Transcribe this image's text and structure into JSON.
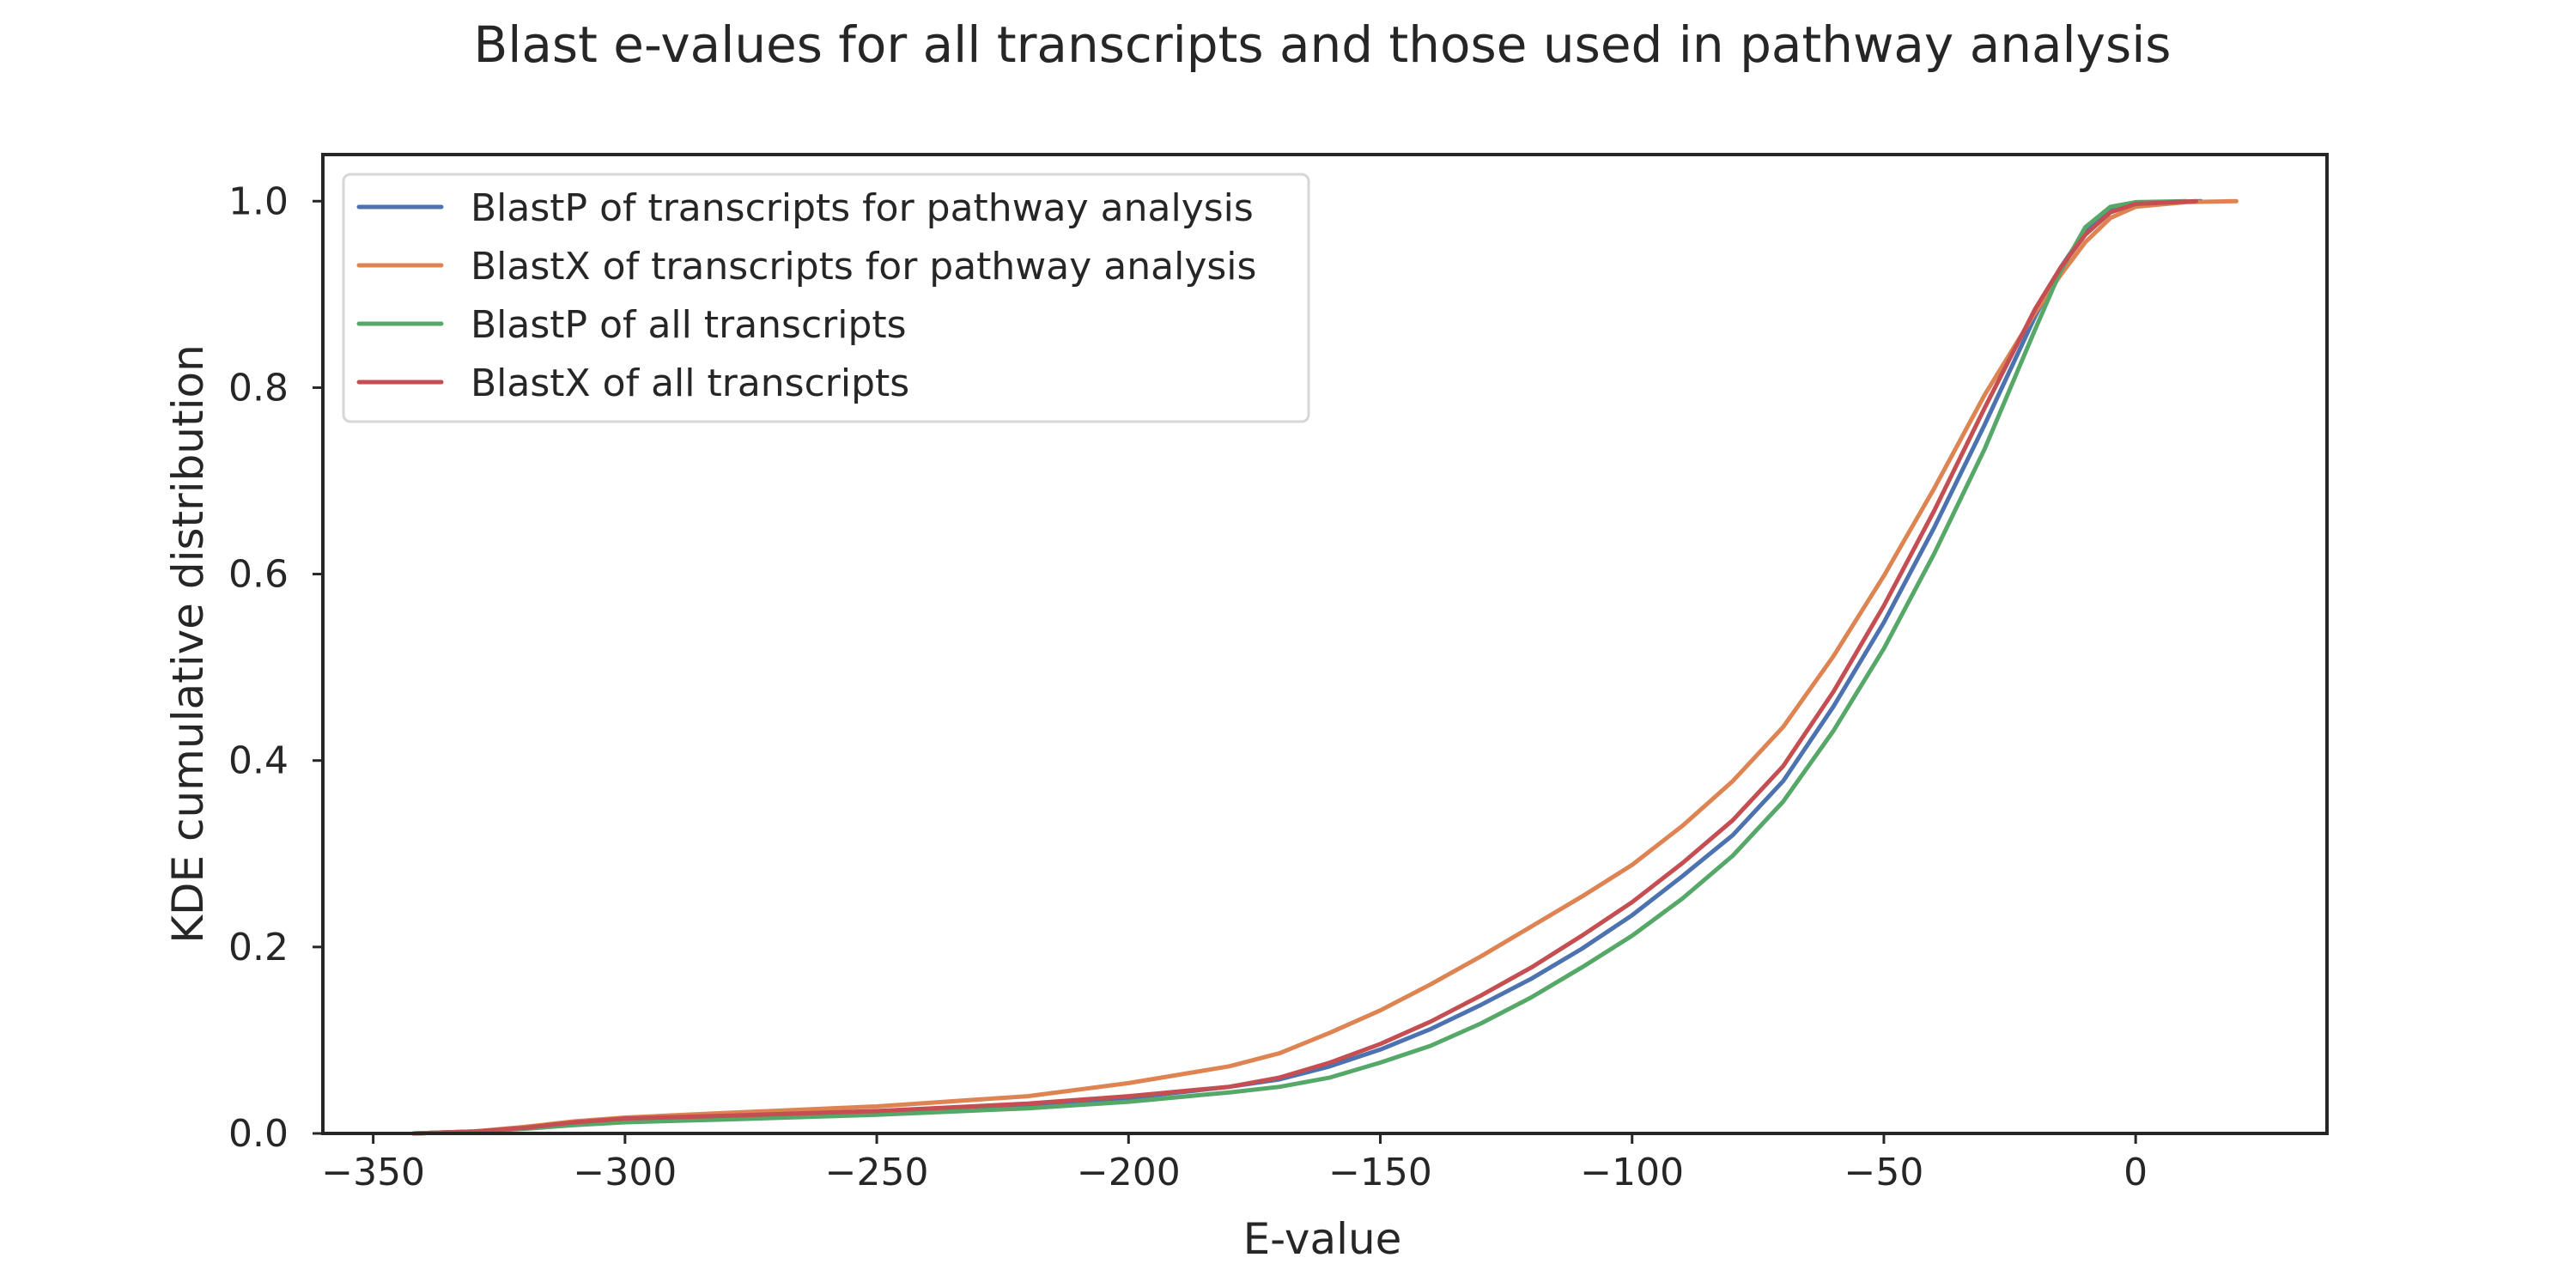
{
  "chart_data": {
    "type": "line",
    "title": "Blast e-values for all transcripts and those used in pathway analysis",
    "xlabel": "E-value",
    "ylabel": "KDE cumulative distribution",
    "xlim": [
      -360,
      38
    ],
    "ylim": [
      0.0,
      1.05
    ],
    "xticks": [
      -350,
      -300,
      -250,
      -200,
      -150,
      -100,
      -50,
      0
    ],
    "xtick_labels": [
      "−350",
      "−300",
      "−250",
      "−200",
      "−150",
      "−100",
      "−50",
      "0"
    ],
    "yticks": [
      0.0,
      0.2,
      0.4,
      0.6,
      0.8,
      1.0
    ],
    "ytick_labels": [
      "0.0",
      "0.2",
      "0.4",
      "0.6",
      "0.8",
      "1.0"
    ],
    "grid": false,
    "legend_position": "upper-left",
    "series": [
      {
        "name": "BlastP of transcripts for pathway analysis",
        "color": "#4c72b0",
        "points": [
          [
            -342,
            0.0
          ],
          [
            -330,
            0.002
          ],
          [
            -320,
            0.006
          ],
          [
            -310,
            0.011
          ],
          [
            -300,
            0.014
          ],
          [
            -280,
            0.017
          ],
          [
            -250,
            0.022
          ],
          [
            -220,
            0.03
          ],
          [
            -200,
            0.038
          ],
          [
            -180,
            0.05
          ],
          [
            -170,
            0.058
          ],
          [
            -160,
            0.072
          ],
          [
            -150,
            0.09
          ],
          [
            -140,
            0.112
          ],
          [
            -130,
            0.138
          ],
          [
            -120,
            0.166
          ],
          [
            -110,
            0.198
          ],
          [
            -100,
            0.234
          ],
          [
            -90,
            0.276
          ],
          [
            -80,
            0.32
          ],
          [
            -70,
            0.378
          ],
          [
            -60,
            0.458
          ],
          [
            -50,
            0.548
          ],
          [
            -40,
            0.65
          ],
          [
            -30,
            0.76
          ],
          [
            -20,
            0.876
          ],
          [
            -15,
            0.928
          ],
          [
            -10,
            0.968
          ],
          [
            -5,
            0.99
          ],
          [
            0,
            0.998
          ],
          [
            13,
            1.0
          ]
        ]
      },
      {
        "name": "BlastX of transcripts for pathway analysis",
        "color": "#dd8452",
        "points": [
          [
            -342,
            0.0
          ],
          [
            -330,
            0.002
          ],
          [
            -320,
            0.007
          ],
          [
            -310,
            0.013
          ],
          [
            -300,
            0.017
          ],
          [
            -280,
            0.022
          ],
          [
            -250,
            0.029
          ],
          [
            -220,
            0.04
          ],
          [
            -200,
            0.054
          ],
          [
            -180,
            0.072
          ],
          [
            -170,
            0.086
          ],
          [
            -160,
            0.108
          ],
          [
            -150,
            0.132
          ],
          [
            -140,
            0.16
          ],
          [
            -130,
            0.19
          ],
          [
            -120,
            0.222
          ],
          [
            -110,
            0.254
          ],
          [
            -100,
            0.288
          ],
          [
            -90,
            0.33
          ],
          [
            -80,
            0.378
          ],
          [
            -70,
            0.436
          ],
          [
            -60,
            0.512
          ],
          [
            -50,
            0.598
          ],
          [
            -40,
            0.692
          ],
          [
            -30,
            0.792
          ],
          [
            -20,
            0.88
          ],
          [
            -15,
            0.92
          ],
          [
            -10,
            0.956
          ],
          [
            -5,
            0.982
          ],
          [
            0,
            0.994
          ],
          [
            10,
            0.999
          ],
          [
            20,
            1.0
          ]
        ]
      },
      {
        "name": "BlastP of all transcripts",
        "color": "#55a868",
        "points": [
          [
            -342,
            0.0
          ],
          [
            -330,
            0.002
          ],
          [
            -320,
            0.005
          ],
          [
            -310,
            0.009
          ],
          [
            -300,
            0.012
          ],
          [
            -280,
            0.015
          ],
          [
            -250,
            0.02
          ],
          [
            -220,
            0.027
          ],
          [
            -200,
            0.034
          ],
          [
            -180,
            0.044
          ],
          [
            -170,
            0.05
          ],
          [
            -160,
            0.06
          ],
          [
            -150,
            0.076
          ],
          [
            -140,
            0.094
          ],
          [
            -130,
            0.118
          ],
          [
            -120,
            0.146
          ],
          [
            -110,
            0.178
          ],
          [
            -100,
            0.212
          ],
          [
            -90,
            0.252
          ],
          [
            -80,
            0.298
          ],
          [
            -70,
            0.356
          ],
          [
            -60,
            0.432
          ],
          [
            -50,
            0.52
          ],
          [
            -40,
            0.622
          ],
          [
            -30,
            0.734
          ],
          [
            -20,
            0.862
          ],
          [
            -15,
            0.924
          ],
          [
            -10,
            0.972
          ],
          [
            -5,
            0.994
          ],
          [
            0,
            0.999
          ],
          [
            10,
            1.0
          ]
        ]
      },
      {
        "name": "BlastX of all transcripts",
        "color": "#c44e52",
        "points": [
          [
            -342,
            0.0
          ],
          [
            -330,
            0.002
          ],
          [
            -320,
            0.006
          ],
          [
            -310,
            0.012
          ],
          [
            -300,
            0.016
          ],
          [
            -280,
            0.019
          ],
          [
            -250,
            0.024
          ],
          [
            -220,
            0.032
          ],
          [
            -200,
            0.04
          ],
          [
            -180,
            0.05
          ],
          [
            -170,
            0.06
          ],
          [
            -160,
            0.076
          ],
          [
            -150,
            0.096
          ],
          [
            -140,
            0.12
          ],
          [
            -130,
            0.148
          ],
          [
            -120,
            0.178
          ],
          [
            -110,
            0.212
          ],
          [
            -100,
            0.248
          ],
          [
            -90,
            0.29
          ],
          [
            -80,
            0.336
          ],
          [
            -70,
            0.394
          ],
          [
            -60,
            0.474
          ],
          [
            -50,
            0.566
          ],
          [
            -40,
            0.668
          ],
          [
            -30,
            0.778
          ],
          [
            -20,
            0.884
          ],
          [
            -15,
            0.928
          ],
          [
            -10,
            0.964
          ],
          [
            -5,
            0.988
          ],
          [
            0,
            0.997
          ],
          [
            12,
            1.0
          ]
        ]
      }
    ]
  }
}
